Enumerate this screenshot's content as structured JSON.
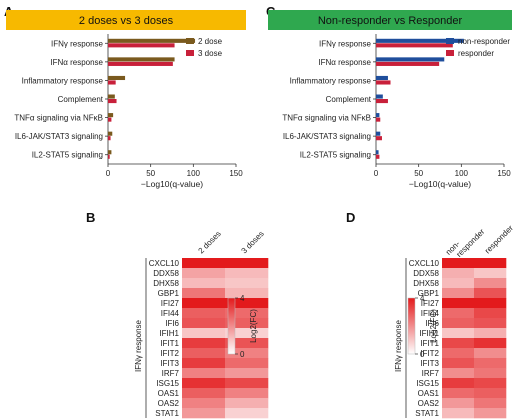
{
  "colors": {
    "banner_a": "#f7b900",
    "banner_c": "#2fa84f",
    "series_a": [
      "#7a5a1e",
      "#c8203a"
    ],
    "series_c": [
      "#1f4e9c",
      "#c8203a"
    ],
    "heat_low": "#ffffff",
    "heat_high": "#e31a1c"
  },
  "chart_data": [
    {
      "panel": "A",
      "type": "bar",
      "orientation": "horizontal",
      "title": "2 doses vs 3 doses",
      "categories": [
        "IFNγ response",
        "IFNα response",
        "Inflammatory response",
        "Complement",
        "TNFα signaling via NFκB",
        "IL6-JAK/STAT3 signaling",
        "IL2-STAT5 signaling"
      ],
      "series": [
        {
          "name": "2 dose",
          "values": [
            102,
            78,
            20,
            8,
            6,
            5,
            4
          ]
        },
        {
          "name": "3 dose",
          "values": [
            78,
            76,
            9,
            10,
            4,
            3,
            2
          ]
        }
      ],
      "xlabel": "−Log10(q-value)",
      "xticks": [
        0,
        50,
        100,
        150
      ],
      "xlim": [
        0,
        150
      ],
      "legend_position": "top-right"
    },
    {
      "panel": "C",
      "type": "bar",
      "orientation": "horizontal",
      "title": "Non-responder vs Responder",
      "categories": [
        "IFNγ response",
        "IFNα response",
        "Inflammatory response",
        "Complement",
        "TNFα signaling via NFκB",
        "IL6-JAK/STAT3 signaling",
        "IL2-STAT5 signaling"
      ],
      "series": [
        {
          "name": "non-responder",
          "values": [
            103,
            80,
            14,
            8,
            4,
            5,
            3
          ]
        },
        {
          "name": "responder",
          "values": [
            90,
            74,
            17,
            14,
            5,
            7,
            4
          ]
        }
      ],
      "xlabel": "−Log10(q-value)",
      "xticks": [
        0,
        50,
        100,
        150
      ],
      "xlim": [
        0,
        150
      ],
      "legend_position": "top-right"
    },
    {
      "panel": "B",
      "type": "heatmap",
      "columns": [
        "2 doses",
        "3 doses"
      ],
      "rows": [
        "CXCL10",
        "DDX58",
        "DHX58",
        "GBP1",
        "IFI27",
        "IFI44",
        "IFI6",
        "IFIH1",
        "IFIT1",
        "IFIT2",
        "IFIT3",
        "IRF7",
        "ISG15",
        "OAS1",
        "OAS2",
        "STAT1"
      ],
      "values": [
        [
          4.0,
          4.0
        ],
        [
          1.6,
          1.2
        ],
        [
          1.2,
          1.0
        ],
        [
          2.4,
          1.3
        ],
        [
          4.0,
          4.0
        ],
        [
          2.8,
          2.6
        ],
        [
          3.0,
          2.8
        ],
        [
          1.0,
          0.8
        ],
        [
          3.4,
          3.0
        ],
        [
          2.8,
          2.2
        ],
        [
          3.4,
          2.6
        ],
        [
          2.2,
          1.8
        ],
        [
          3.6,
          3.2
        ],
        [
          2.8,
          2.2
        ],
        [
          2.2,
          1.4
        ],
        [
          1.8,
          0.8
        ]
      ],
      "row_group_label": "IFNγ response",
      "colorbar_label": "Log2(FC)",
      "colorbar_ticks": [
        0,
        4
      ],
      "vmin": 0,
      "vmax": 4
    },
    {
      "panel": "D",
      "type": "heatmap",
      "columns": [
        "non-responder",
        "responder"
      ],
      "rows": [
        "CXCL10",
        "DDX58",
        "DHX58",
        "GBP1",
        "IFI27",
        "IFI44",
        "IFI6",
        "IFIH1",
        "IFIT1",
        "IFIT2",
        "IFIT3",
        "IRF7",
        "ISG15",
        "OAS1",
        "OAS2",
        "STAT1"
      ],
      "values": [
        [
          4.0,
          4.0
        ],
        [
          1.4,
          1.0
        ],
        [
          1.2,
          2.0
        ],
        [
          2.0,
          3.0
        ],
        [
          4.0,
          4.0
        ],
        [
          2.6,
          3.2
        ],
        [
          2.8,
          3.0
        ],
        [
          1.0,
          1.4
        ],
        [
          3.2,
          3.6
        ],
        [
          2.6,
          2.0
        ],
        [
          3.0,
          2.6
        ],
        [
          2.0,
          2.4
        ],
        [
          3.4,
          3.2
        ],
        [
          2.6,
          2.8
        ],
        [
          1.8,
          2.4
        ],
        [
          1.2,
          1.8
        ]
      ],
      "row_group_label": "IFNγ response",
      "colorbar_label": "Log2(FC)",
      "colorbar_ticks": [
        0,
        4
      ],
      "vmin": 0,
      "vmax": 4
    }
  ]
}
